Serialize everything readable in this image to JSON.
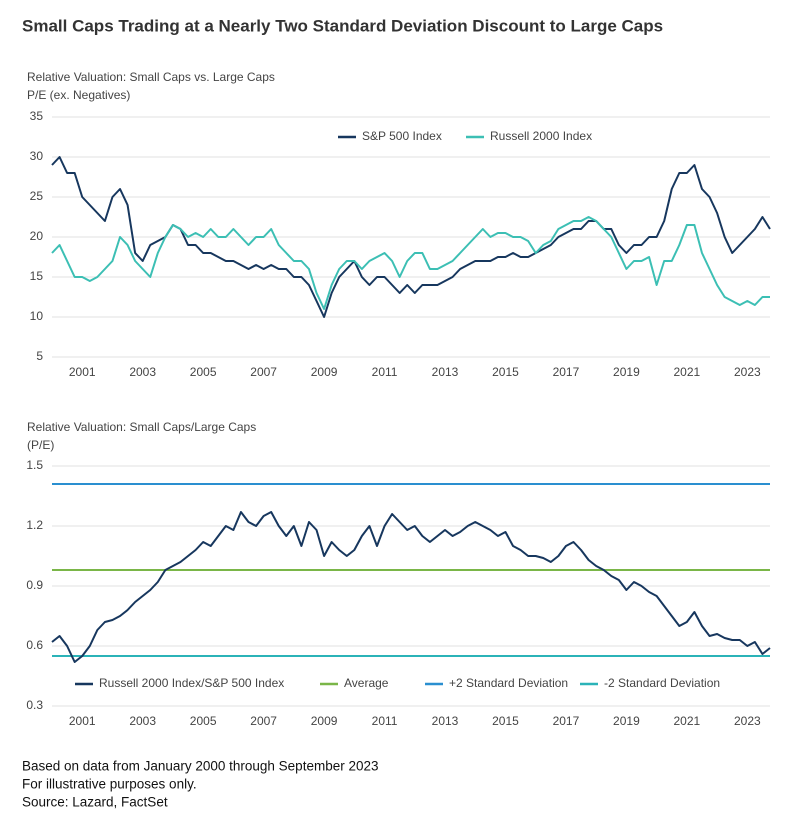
{
  "title": "Small Caps Trading at a Nearly Two Standard Deviation Discount to Large Caps",
  "footnotes": [
    "Based on data from January 2000 through September 2023",
    "For illustrative purposes only.",
    "Source: Lazard, FactSet"
  ],
  "chart_data": [
    {
      "type": "line",
      "title": "Relative Valuation: Small Caps vs. Large Caps",
      "y_label": "P/E (ex. Negatives)",
      "x": [
        2000,
        2000.25,
        2000.5,
        2000.75,
        2001,
        2001.25,
        2001.5,
        2001.75,
        2002,
        2002.25,
        2002.5,
        2002.75,
        2003,
        2003.25,
        2003.5,
        2003.75,
        2004,
        2004.25,
        2004.5,
        2004.75,
        2005,
        2005.25,
        2005.5,
        2005.75,
        2006,
        2006.25,
        2006.5,
        2006.75,
        2007,
        2007.25,
        2007.5,
        2007.75,
        2008,
        2008.25,
        2008.5,
        2008.75,
        2009,
        2009.25,
        2009.5,
        2009.75,
        2010,
        2010.25,
        2010.5,
        2010.75,
        2011,
        2011.25,
        2011.5,
        2011.75,
        2012,
        2012.25,
        2012.5,
        2012.75,
        2013,
        2013.25,
        2013.5,
        2013.75,
        2014,
        2014.25,
        2014.5,
        2014.75,
        2015,
        2015.25,
        2015.5,
        2015.75,
        2016,
        2016.25,
        2016.5,
        2016.75,
        2017,
        2017.25,
        2017.5,
        2017.75,
        2018,
        2018.25,
        2018.5,
        2018.75,
        2019,
        2019.25,
        2019.5,
        2019.75,
        2020,
        2020.25,
        2020.5,
        2020.75,
        2021,
        2021.25,
        2021.5,
        2021.75,
        2022,
        2022.25,
        2022.5,
        2022.75,
        2023,
        2023.25,
        2023.5,
        2023.75
      ],
      "series": [
        {
          "name": "S&P 500 Index",
          "color": "#17375e",
          "values": [
            29,
            30,
            28,
            28,
            25,
            24,
            23,
            22,
            25,
            26,
            24,
            18,
            17,
            19,
            19.5,
            20,
            21.5,
            21,
            19,
            19,
            18,
            18,
            17.5,
            17,
            17,
            16.5,
            16,
            16.5,
            16,
            16.5,
            16,
            16,
            15,
            15,
            14,
            12,
            10,
            13,
            15,
            16,
            17,
            15,
            14,
            15,
            15,
            14,
            13,
            14,
            13,
            14,
            14,
            14,
            14.5,
            15,
            16,
            16.5,
            17,
            17,
            17,
            17.5,
            17.5,
            18,
            17.5,
            17.5,
            18,
            18.5,
            19,
            20,
            20.5,
            21,
            21,
            22,
            22,
            21,
            21,
            19,
            18,
            19,
            19,
            20,
            20,
            22,
            26,
            28,
            28,
            29,
            26,
            25,
            23,
            20,
            18,
            19,
            20,
            21,
            22.5,
            21
          ]
        },
        {
          "name": "Russell 2000 Index",
          "color": "#3cbfb4",
          "values": [
            18,
            19,
            17,
            15,
            15,
            14.5,
            15,
            16,
            17,
            20,
            19,
            17,
            16,
            15,
            18,
            20,
            21.5,
            21,
            20,
            20.5,
            20,
            21,
            20,
            20,
            21,
            20,
            19,
            20,
            20,
            21,
            19,
            18,
            17,
            17,
            16,
            13,
            11,
            14,
            16,
            17,
            17,
            16,
            17,
            17.5,
            18,
            17,
            15,
            17,
            18,
            18,
            16,
            16,
            16.5,
            17,
            18,
            19,
            20,
            21,
            20,
            20.5,
            20.5,
            20,
            20,
            19.5,
            18,
            19,
            19.5,
            21,
            21.5,
            22,
            22,
            22.5,
            22,
            21,
            20,
            18,
            16,
            17,
            17,
            17.5,
            14,
            17,
            17,
            19,
            21.5,
            21.5,
            18,
            16,
            14,
            12.5,
            12,
            11.5,
            12,
            11.5,
            12.5,
            12.5
          ]
        }
      ],
      "xlim": [
        2000,
        2023.75
      ],
      "xticks": [
        2001,
        2003,
        2005,
        2007,
        2009,
        2011,
        2013,
        2015,
        2017,
        2019,
        2021,
        2023
      ],
      "ylim": [
        5,
        35
      ],
      "yticks": [
        5,
        10,
        15,
        20,
        25,
        30,
        35
      ],
      "grid": true
    },
    {
      "type": "line",
      "title": "Relative Valuation: Small Caps/Large Caps",
      "y_label": "(P/E)",
      "x": [
        2000,
        2000.25,
        2000.5,
        2000.75,
        2001,
        2001.25,
        2001.5,
        2001.75,
        2002,
        2002.25,
        2002.5,
        2002.75,
        2003,
        2003.25,
        2003.5,
        2003.75,
        2004,
        2004.25,
        2004.5,
        2004.75,
        2005,
        2005.25,
        2005.5,
        2005.75,
        2006,
        2006.25,
        2006.5,
        2006.75,
        2007,
        2007.25,
        2007.5,
        2007.75,
        2008,
        2008.25,
        2008.5,
        2008.75,
        2009,
        2009.25,
        2009.5,
        2009.75,
        2010,
        2010.25,
        2010.5,
        2010.75,
        2011,
        2011.25,
        2011.5,
        2011.75,
        2012,
        2012.25,
        2012.5,
        2012.75,
        2013,
        2013.25,
        2013.5,
        2013.75,
        2014,
        2014.25,
        2014.5,
        2014.75,
        2015,
        2015.25,
        2015.5,
        2015.75,
        2016,
        2016.25,
        2016.5,
        2016.75,
        2017,
        2017.25,
        2017.5,
        2017.75,
        2018,
        2018.25,
        2018.5,
        2018.75,
        2019,
        2019.25,
        2019.5,
        2019.75,
        2020,
        2020.25,
        2020.5,
        2020.75,
        2021,
        2021.25,
        2021.5,
        2021.75,
        2022,
        2022.25,
        2022.5,
        2022.75,
        2023,
        2023.25,
        2023.5,
        2023.75
      ],
      "series": [
        {
          "name": "Russell 2000 Index/S&P 500 Index",
          "color": "#17375e",
          "values": [
            0.62,
            0.65,
            0.6,
            0.52,
            0.55,
            0.6,
            0.68,
            0.72,
            0.73,
            0.75,
            0.78,
            0.82,
            0.85,
            0.88,
            0.92,
            0.98,
            1.0,
            1.02,
            1.05,
            1.08,
            1.12,
            1.1,
            1.15,
            1.2,
            1.18,
            1.27,
            1.22,
            1.2,
            1.25,
            1.27,
            1.2,
            1.15,
            1.2,
            1.1,
            1.22,
            1.18,
            1.05,
            1.12,
            1.08,
            1.05,
            1.08,
            1.15,
            1.2,
            1.1,
            1.2,
            1.26,
            1.22,
            1.18,
            1.2,
            1.15,
            1.12,
            1.15,
            1.18,
            1.15,
            1.17,
            1.2,
            1.22,
            1.2,
            1.18,
            1.15,
            1.17,
            1.1,
            1.08,
            1.05,
            1.05,
            1.04,
            1.02,
            1.05,
            1.1,
            1.12,
            1.08,
            1.03,
            1.0,
            0.98,
            0.95,
            0.93,
            0.88,
            0.92,
            0.9,
            0.87,
            0.85,
            0.8,
            0.75,
            0.7,
            0.72,
            0.77,
            0.7,
            0.65,
            0.66,
            0.64,
            0.63,
            0.63,
            0.6,
            0.62,
            0.56,
            0.59
          ]
        }
      ],
      "hlines": [
        {
          "name": "Average",
          "color": "#7ab648",
          "value": 0.98
        },
        {
          "name": "+2 Standard Deviation",
          "color": "#2a8fd0",
          "value": 1.41
        },
        {
          "name": "-2 Standard Deviation",
          "color": "#2bb3b8",
          "value": 0.55
        }
      ],
      "xlim": [
        2000,
        2023.75
      ],
      "xticks": [
        2001,
        2003,
        2005,
        2007,
        2009,
        2011,
        2013,
        2015,
        2017,
        2019,
        2021,
        2023
      ],
      "ylim": [
        0.3,
        1.5
      ],
      "yticks": [
        0.3,
        0.6,
        0.9,
        1.2,
        1.5
      ],
      "grid": true
    }
  ]
}
